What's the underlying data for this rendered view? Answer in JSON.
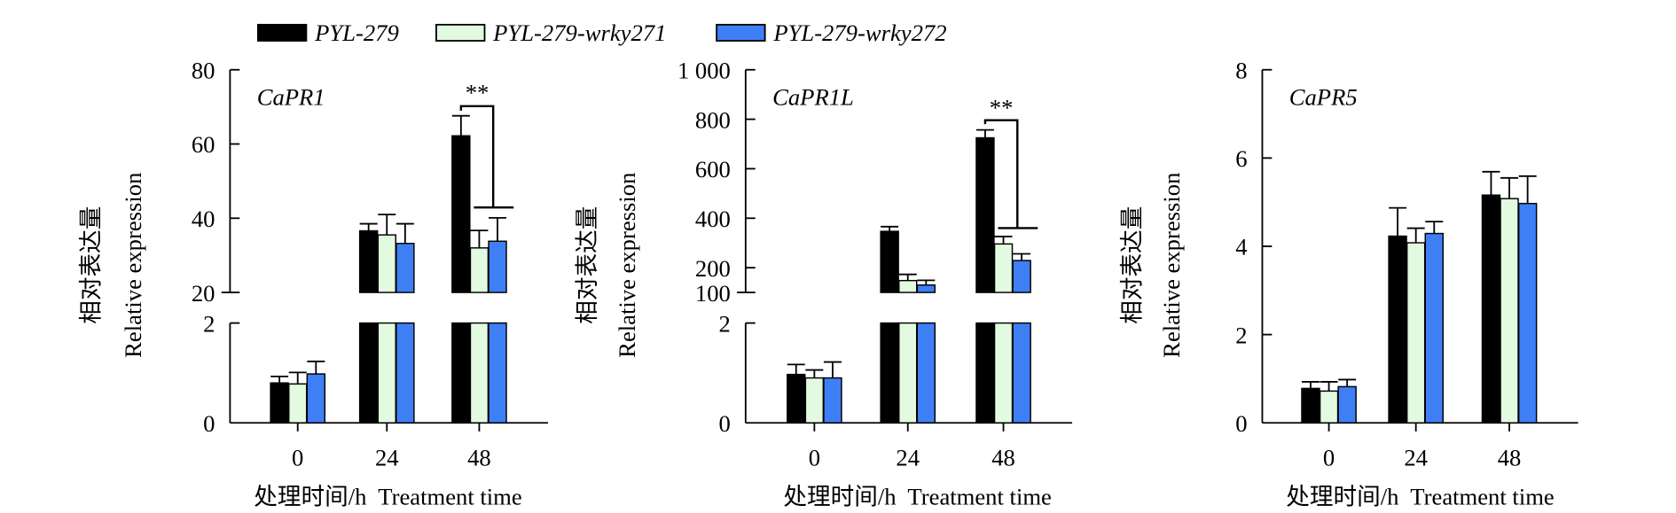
{
  "legend": [
    {
      "name": "PYL-279",
      "color": "#000000"
    },
    {
      "name": "PYL-279-wrky271",
      "color": "#e2fbe0"
    },
    {
      "name": "PYL-279-wrky272",
      "color": "#3f7ff5"
    }
  ],
  "chart_data": [
    {
      "type": "bar",
      "title": "CaPR1",
      "ylabel_cn": "相对表达量",
      "ylabel": "Relative expression",
      "xlabel": "处理时间/h  Treatment time",
      "categories": [
        "0",
        "24",
        "48"
      ],
      "ylim": [
        0,
        80
      ],
      "axis_break": [
        2,
        20
      ],
      "yticks": [
        {
          "v": 0,
          "label": "0"
        },
        {
          "v": 2,
          "label": "2"
        },
        {
          "v": 20,
          "label": "20"
        },
        {
          "v": 40,
          "label": "40"
        },
        {
          "v": 60,
          "label": "60"
        },
        {
          "v": 80,
          "label": "80"
        }
      ],
      "series": [
        {
          "name": "PYL-279",
          "values": [
            0.8,
            36.6,
            62.2
          ],
          "err": [
            0.13,
            1.9,
            5.4
          ]
        },
        {
          "name": "PYL-279-wrky271",
          "values": [
            0.78,
            35.5,
            32.0
          ],
          "err": [
            0.23,
            5.5,
            4.7
          ]
        },
        {
          "name": "PYL-279-wrky272",
          "values": [
            0.98,
            33.2,
            33.8
          ],
          "err": [
            0.25,
            5.3,
            6.3
          ]
        }
      ],
      "significance": {
        "category": "48",
        "label": "**",
        "top": 70.2,
        "left_drop": 69.0,
        "bottom": 42.9,
        "star_y": 74
      }
    },
    {
      "type": "bar",
      "title": "CaPR1L",
      "ylabel_cn": "相对表达量",
      "ylabel": "Relative expression",
      "xlabel": "处理时间/h  Treatment time",
      "categories": [
        "0",
        "24",
        "48"
      ],
      "ylim": [
        0,
        1000
      ],
      "axis_break": [
        2,
        100
      ],
      "yticks": [
        {
          "v": 0,
          "label": "0"
        },
        {
          "v": 2,
          "label": "2"
        },
        {
          "v": 100,
          "label": "100"
        },
        {
          "v": 200,
          "label": "200"
        },
        {
          "v": 400,
          "label": "400"
        },
        {
          "v": 600,
          "label": "600"
        },
        {
          "v": 800,
          "label": "800"
        },
        {
          "v": 1000,
          "label": "1 000"
        }
      ],
      "series": [
        {
          "name": "PYL-279",
          "values": [
            0.97,
            347,
            725
          ],
          "err": [
            0.2,
            19,
            32
          ]
        },
        {
          "name": "PYL-279-wrky271",
          "values": [
            0.9,
            148,
            296
          ],
          "err": [
            0.16,
            25,
            30
          ]
        },
        {
          "name": "PYL-279-wrky272",
          "values": [
            0.9,
            130,
            229
          ],
          "err": [
            0.32,
            19,
            27
          ]
        }
      ],
      "significance": {
        "category": "48",
        "label": "**",
        "top": 796,
        "left_drop": 780,
        "bottom": 360,
        "star_y": 850
      }
    },
    {
      "type": "bar",
      "title": "CaPR5",
      "ylabel_cn": "相对表达量",
      "ylabel": "Relative expression",
      "xlabel": "处理时间/h  Treatment time",
      "categories": [
        "0",
        "24",
        "48"
      ],
      "ylim": [
        0,
        8
      ],
      "yticks": [
        {
          "v": 0,
          "label": "0"
        },
        {
          "v": 2,
          "label": "2"
        },
        {
          "v": 4,
          "label": "4"
        },
        {
          "v": 6,
          "label": "6"
        },
        {
          "v": 8,
          "label": "8"
        }
      ],
      "series": [
        {
          "name": "PYL-279",
          "values": [
            0.78,
            4.23,
            5.16
          ],
          "err": [
            0.15,
            0.64,
            0.53
          ]
        },
        {
          "name": "PYL-279-wrky271",
          "values": [
            0.72,
            4.08,
            5.08
          ],
          "err": [
            0.21,
            0.33,
            0.47
          ]
        },
        {
          "name": "PYL-279-wrky272",
          "values": [
            0.82,
            4.29,
            4.97
          ],
          "err": [
            0.16,
            0.27,
            0.62
          ]
        }
      ]
    }
  ]
}
